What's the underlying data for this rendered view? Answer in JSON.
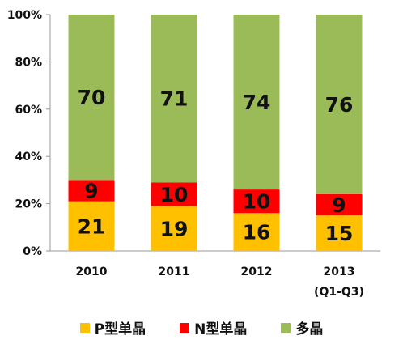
{
  "chart_data": {
    "type": "bar",
    "stacked": true,
    "categories": [
      "2010",
      "2011",
      "2012",
      "2013"
    ],
    "category_sublabels": [
      "",
      "",
      "",
      "(Q1-Q3)"
    ],
    "series": [
      {
        "name": "P型单晶",
        "values": [
          21,
          19,
          16,
          15
        ],
        "color": "#FFC000"
      },
      {
        "name": "N型单晶",
        "values": [
          9,
          10,
          10,
          9
        ],
        "color": "#FF0000"
      },
      {
        "name": "多晶",
        "values": [
          70,
          71,
          74,
          76
        ],
        "color": "#9BBB59"
      }
    ],
    "ylim": [
      0,
      100
    ],
    "yticks": [
      "0%",
      "20%",
      "40%",
      "60%",
      "80%",
      "100%"
    ],
    "grid": false,
    "legend_position": "bottom"
  }
}
